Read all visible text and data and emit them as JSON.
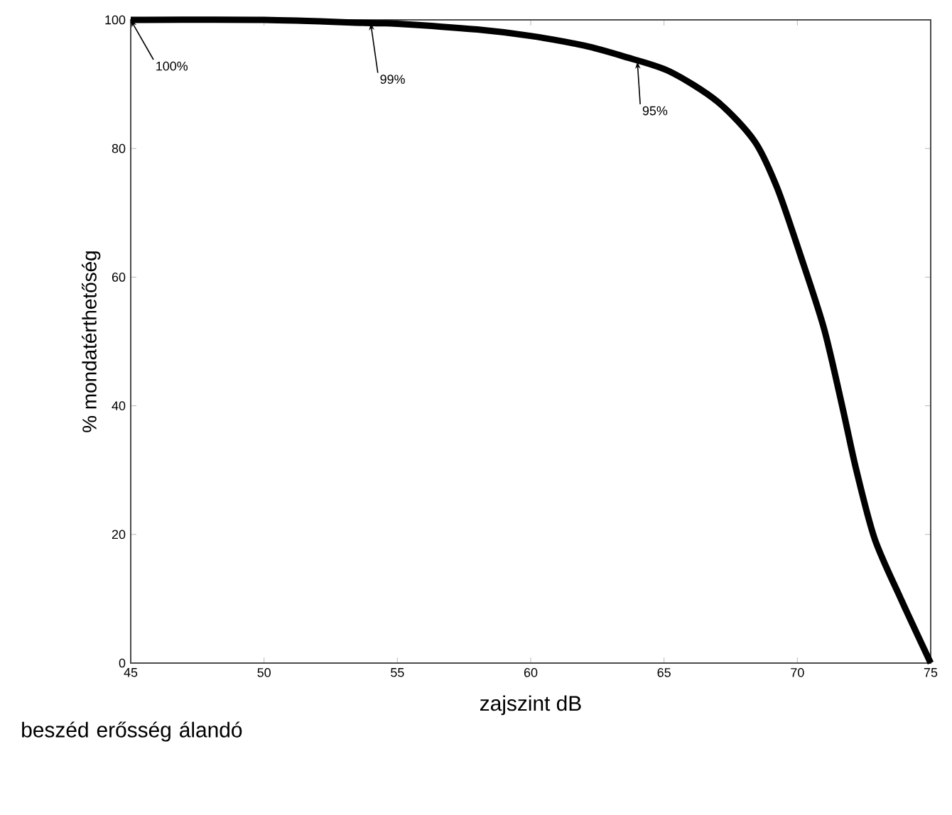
{
  "chart_data": {
    "type": "line",
    "xlabel": "zajszint dB",
    "ylabel": "% mondatérthetőség",
    "x": [
      45,
      50,
      54,
      55,
      58,
      60,
      62,
      63.5,
      65.2,
      67,
      68.4,
      69.25,
      70.1,
      71,
      71.7,
      72.2,
      72.9,
      73.9,
      75
    ],
    "values": [
      100,
      100,
      99.5,
      99.4,
      98.5,
      97.5,
      96,
      94.3,
      92,
      87.3,
      81.1,
      73.8,
      63.6,
      52,
      39.6,
      30.2,
      19.3,
      9.8,
      0
    ],
    "color": "#000000",
    "xlim": [
      45,
      75
    ],
    "ylim": [
      0,
      100
    ],
    "xticks": [
      45,
      50,
      55,
      60,
      65,
      70,
      75
    ],
    "yticks": [
      0,
      20,
      40,
      60,
      80,
      100
    ],
    "annotations": [
      {
        "text": "100%",
        "x": 45,
        "y": 100
      },
      {
        "text": "99%",
        "x": 54,
        "y": 99.5
      },
      {
        "text": "95%",
        "x": 64,
        "y": 93.5
      },
      "beszéd erősség álandó"
    ]
  }
}
